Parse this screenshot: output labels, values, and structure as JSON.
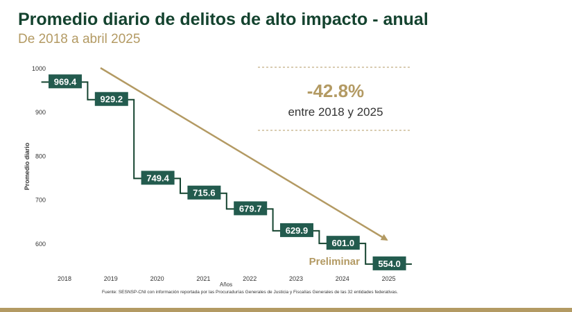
{
  "header": {
    "title": "Promedio diario de delitos de alto impacto - anual",
    "subtitle": "De 2018 a abril 2025"
  },
  "colors": {
    "primary": "#14432f",
    "accent": "#b39a63",
    "label_bg": "#235b4e"
  },
  "chart_data": {
    "type": "line",
    "style": "step",
    "x": [
      "2018",
      "2019",
      "2020",
      "2021",
      "2022",
      "2023",
      "2024",
      "2025"
    ],
    "values": [
      969.4,
      929.2,
      749.4,
      715.6,
      679.7,
      629.9,
      601.0,
      554.0
    ],
    "value_labels": [
      "969.4",
      "929.2",
      "749.4",
      "715.6",
      "679.7",
      "629.9",
      "601.0",
      "554.0"
    ],
    "xlabel": "Años",
    "ylabel": "Promedio diario",
    "ylim": [
      560,
      1000
    ],
    "yticks": [
      600,
      700,
      800,
      900,
      1000
    ],
    "grid": false,
    "trend_arrow": true,
    "annotation": {
      "percent": "-42.8%",
      "text": "entre 2018 y 2025",
      "tag": "Preliminar"
    }
  },
  "source_note": "Fuente: SESNSP-CNI con información reportada por las Procuradurías Generales de Justicia y Fiscalías Generales de las 32 entidades federativas."
}
